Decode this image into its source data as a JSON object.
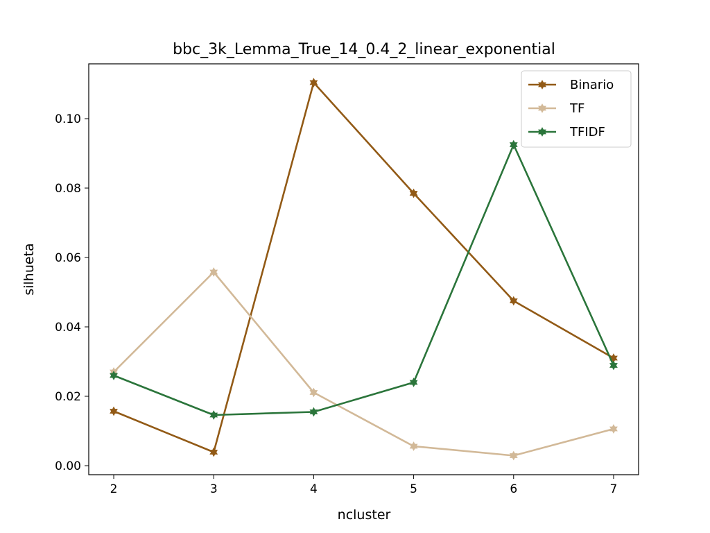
{
  "chart_data": {
    "type": "line",
    "title": "bbc_3k_Lemma_True_14_0.4_2_linear_exponential",
    "xlabel": "ncluster",
    "ylabel": "silhueta",
    "x": [
      2,
      3,
      4,
      5,
      6,
      7
    ],
    "xlim": [
      1.75,
      7.25
    ],
    "ylim": [
      -0.0026,
      0.1158
    ],
    "xticks": [
      "2",
      "3",
      "4",
      "5",
      "6",
      "7"
    ],
    "yticks": [
      "0.00",
      "0.02",
      "0.04",
      "0.06",
      "0.08",
      "0.10"
    ],
    "ytick_values": [
      0.0,
      0.02,
      0.04,
      0.06,
      0.08,
      0.1
    ],
    "legend_position": "top-right",
    "marker": "star",
    "grid": false,
    "series": [
      {
        "name": "Binario",
        "color": "#925a16",
        "values": [
          0.0157,
          0.0039,
          0.1104,
          0.0785,
          0.0475,
          0.031
        ]
      },
      {
        "name": "TF",
        "color": "#d2b998",
        "values": [
          0.027,
          0.0558,
          0.0211,
          0.0056,
          0.0029,
          0.0106
        ]
      },
      {
        "name": "TFIDF",
        "color": "#2b753b",
        "values": [
          0.026,
          0.0146,
          0.0155,
          0.024,
          0.0925,
          0.0289
        ]
      }
    ]
  }
}
